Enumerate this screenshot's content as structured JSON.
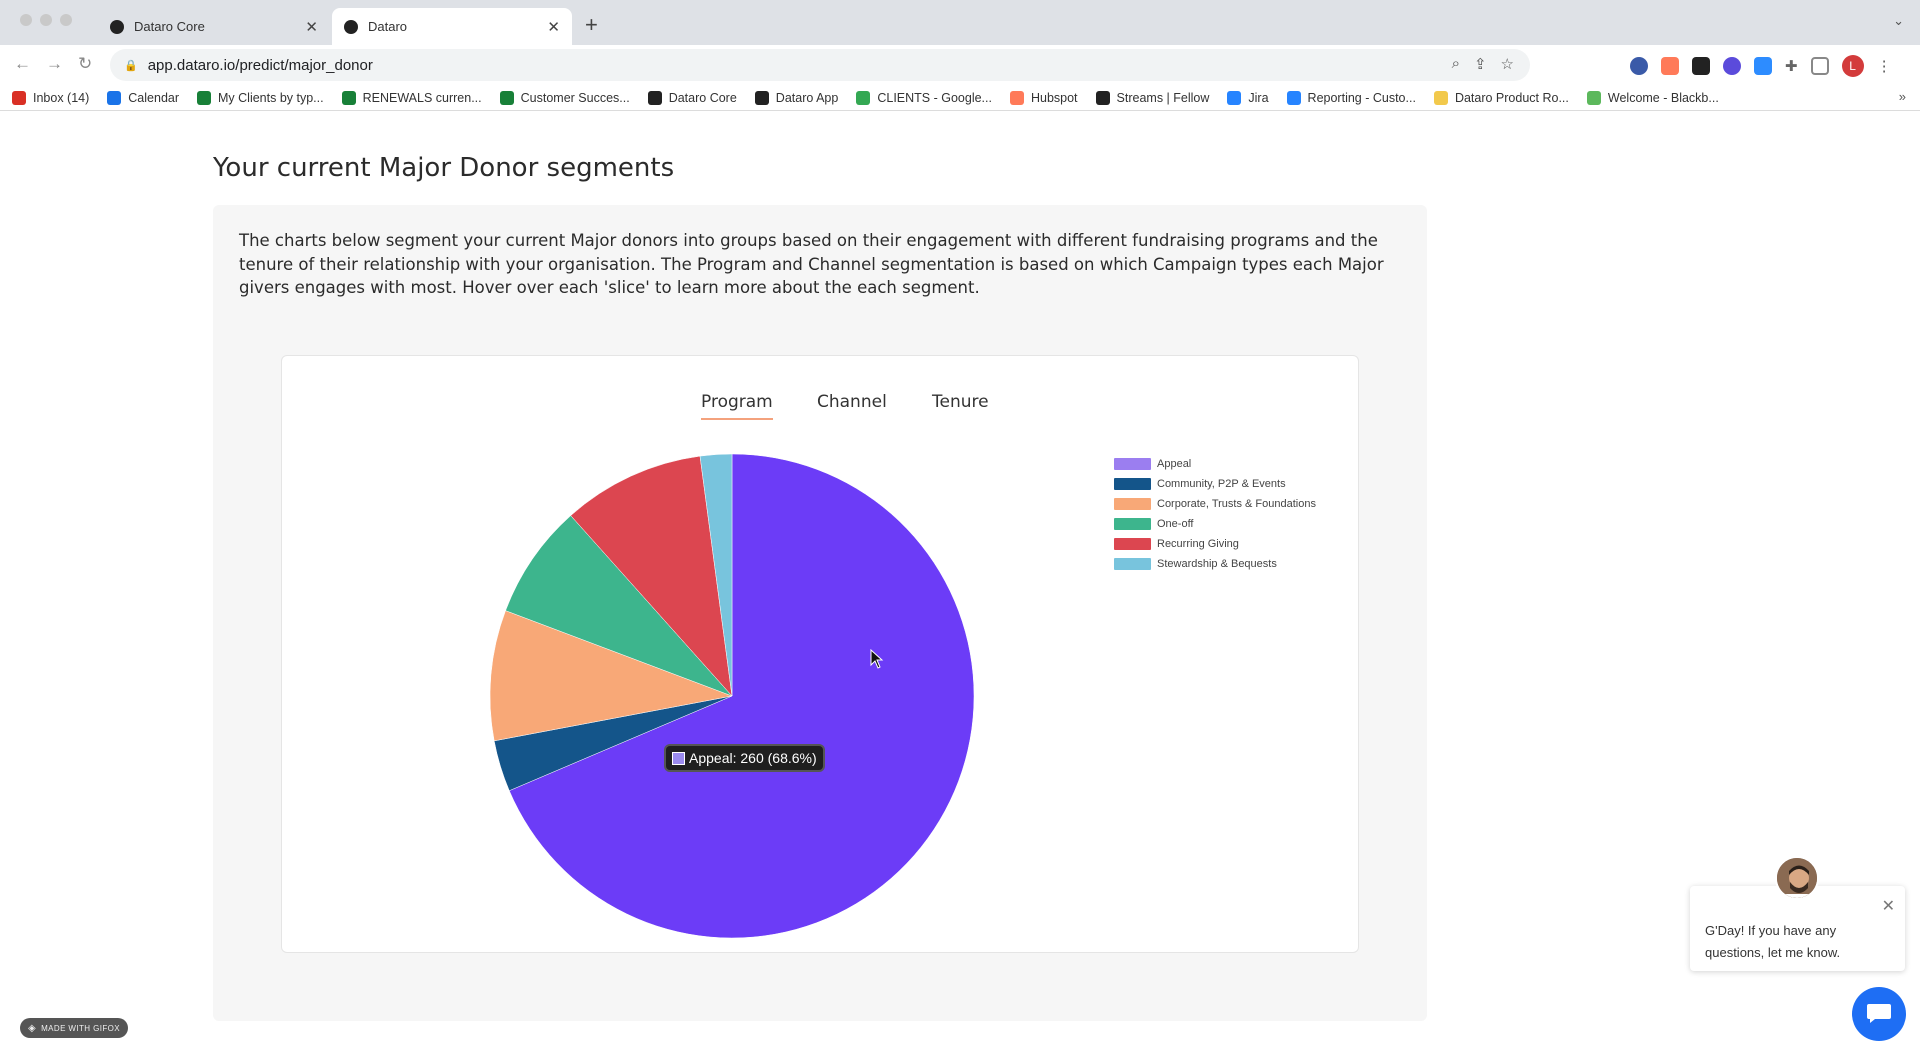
{
  "browser": {
    "tabs": [
      {
        "title": "Dataro Core",
        "active": false
      },
      {
        "title": "Dataro",
        "active": true
      }
    ],
    "url": "app.dataro.io/predict/major_donor",
    "avatar_letter": "L",
    "bookmarks": [
      {
        "label": "Inbox (14)",
        "icon": "gmail-icon",
        "color": "#d93025"
      },
      {
        "label": "Calendar",
        "icon": "calendar-icon",
        "color": "#1a73e8"
      },
      {
        "label": "My Clients by typ...",
        "icon": "sheets-icon",
        "color": "#188038"
      },
      {
        "label": "RENEWALS curren...",
        "icon": "sheets-icon",
        "color": "#188038"
      },
      {
        "label": "Customer Succes...",
        "icon": "sheets-icon",
        "color": "#188038"
      },
      {
        "label": "Dataro Core",
        "icon": "dataro-icon",
        "color": "#222222"
      },
      {
        "label": "Dataro App",
        "icon": "dataro-icon",
        "color": "#222222"
      },
      {
        "label": "CLIENTS - Google...",
        "icon": "drive-icon",
        "color": "#34a853"
      },
      {
        "label": "Hubspot",
        "icon": "hubspot-icon",
        "color": "#ff7a59"
      },
      {
        "label": "Streams | Fellow",
        "icon": "fellow-icon",
        "color": "#222222"
      },
      {
        "label": "Jira",
        "icon": "jira-icon",
        "color": "#2684ff"
      },
      {
        "label": "Reporting - Custo...",
        "icon": "reporting-icon",
        "color": "#2684ff"
      },
      {
        "label": "Dataro Product Ro...",
        "icon": "miro-icon",
        "color": "#f2c94c"
      },
      {
        "label": "Welcome - Blackb...",
        "icon": "blackbaud-icon",
        "color": "#5cb85c"
      }
    ]
  },
  "page": {
    "title": "Your current Major Donor segments",
    "description": "The charts below segment your current Major donors into groups based on their engagement with different fundraising programs and the tenure of their relationship with your organisation. The Program and Channel segmentation is based on which Campaign types each Major givers engages with most. Hover over each 'slice' to learn more about the each segment.",
    "chart_tabs": [
      "Program",
      "Channel",
      "Tenure"
    ],
    "selected_tab": "Program",
    "tooltip": "Appeal: 260 (68.6%)"
  },
  "chart_data": {
    "type": "pie",
    "title": "",
    "categories": [
      "Appeal",
      "Community, P2P & Events",
      "Corporate, Trusts & Foundations",
      "One-off",
      "Recurring Giving",
      "Stewardship & Bequests"
    ],
    "values": [
      260,
      13,
      33,
      29,
      36,
      8
    ],
    "colors": [
      "#6c3cf7",
      "#14558a",
      "#f8a877",
      "#3db58d",
      "#dc4650",
      "#78c4dd"
    ],
    "legend_colors": [
      "#9b7ef0",
      "#14558a",
      "#f8a877",
      "#3db58d",
      "#dc4650",
      "#78c4dd"
    ],
    "legend_position": "right"
  },
  "gifox_badge": "MADE WITH GIFOX",
  "chat": {
    "message": "G'Day! If you have any questions, let me know."
  }
}
